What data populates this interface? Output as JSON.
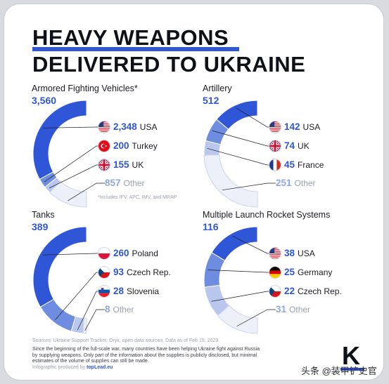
{
  "title": {
    "line1": "HEAVY WEAPONS",
    "line2": "DELIVERED TO UKRAINE"
  },
  "colors": {
    "accent": "#2f56d6",
    "mid": "#6f8de0",
    "light": "#b9c7ee",
    "other": "#edf0f8"
  },
  "chart_data": [
    {
      "type": "pie",
      "title": "Armored Fighting Vehicles*",
      "total": "3,560",
      "footnote": "*Includes IFV, APC, IMV, and MRAP",
      "entries": [
        {
          "value": 2348,
          "label": "2,348",
          "country": "USA",
          "flag": "usa-flag-icon"
        },
        {
          "value": 200,
          "label": "200",
          "country": "Turkey",
          "flag": "turkey-flag-icon"
        },
        {
          "value": 155,
          "label": "155",
          "country": "UK",
          "flag": "uk-flag-icon"
        },
        {
          "value": 857,
          "label": "857",
          "country": "Other",
          "flag": ""
        }
      ]
    },
    {
      "type": "pie",
      "title": "Artillery",
      "total": "512",
      "entries": [
        {
          "value": 142,
          "label": "142",
          "country": "USA",
          "flag": "usa-flag-icon"
        },
        {
          "value": 74,
          "label": "74",
          "country": "UK",
          "flag": "uk-flag-icon"
        },
        {
          "value": 45,
          "label": "45",
          "country": "France",
          "flag": "france-flag-icon"
        },
        {
          "value": 251,
          "label": "251",
          "country": "Other",
          "flag": ""
        }
      ]
    },
    {
      "type": "pie",
      "title": "Tanks",
      "total": "389",
      "entries": [
        {
          "value": 260,
          "label": "260",
          "country": "Poland",
          "flag": "poland-flag-icon"
        },
        {
          "value": 93,
          "label": "93",
          "country": "Czech Rep.",
          "flag": "czech-flag-icon"
        },
        {
          "value": 28,
          "label": "28",
          "country": "Slovenia",
          "flag": "slovenia-flag-icon"
        },
        {
          "value": 8,
          "label": "8",
          "country": "Other",
          "flag": ""
        }
      ]
    },
    {
      "type": "pie",
      "title": "Multiple Launch Rocket Systems",
      "total": "116",
      "entries": [
        {
          "value": 38,
          "label": "38",
          "country": "USA",
          "flag": "usa-flag-icon"
        },
        {
          "value": 25,
          "label": "25",
          "country": "Germany",
          "flag": "germany-flag-icon"
        },
        {
          "value": 22,
          "label": "22",
          "country": "Czech Rep.",
          "flag": "czech-flag-icon"
        },
        {
          "value": 31,
          "label": "31",
          "country": "Other",
          "flag": ""
        }
      ]
    }
  ],
  "footer": {
    "sources": "Sources: Ukraine Support Tracker, Oryx, open data sources. Data as of Feb 15, 2023.",
    "note": "Since the beginning of the full-scale war, many countries have been helping Ukraine fight against Russia by supplying weapons. Only part of the information about the supplies is publicly disclosed, but minimal estimates of the volume of supplies can still be made.",
    "produced_prefix": "Infographic produced by ",
    "produced_by": "topLead.eu",
    "logo_letter": "K",
    "watermark": "头条 @装甲铲史官"
  }
}
